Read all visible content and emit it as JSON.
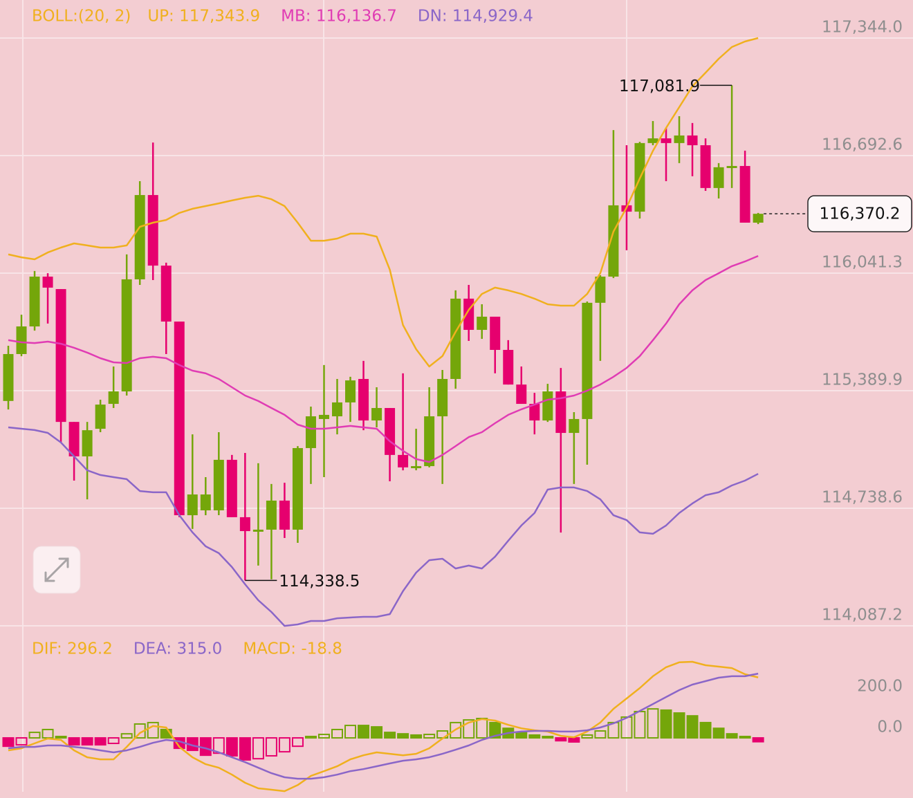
{
  "chart_data": [
    {
      "type": "candlestick",
      "title": "BOLL:(20, 2)",
      "open": [
        115333,
        115593,
        115746,
        116022,
        115953,
        115217,
        115026,
        115179,
        115317,
        115386,
        116007,
        116474,
        116083,
        115773,
        114700,
        114727,
        114727,
        115007,
        114689,
        114612,
        114620,
        114781,
        114620,
        115072,
        115233,
        115248,
        115325,
        115455,
        115225,
        115294,
        115034,
        114965,
        114972,
        115248,
        115455,
        115900,
        115727,
        115800,
        115616,
        115424,
        115317,
        115225,
        115386,
        115156,
        115233,
        115877,
        116022,
        116417,
        116382,
        116762,
        116788,
        116762,
        116804,
        116750,
        116513,
        116624,
        116635,
        116321
      ],
      "high": [
        115639,
        115811,
        116053,
        116041,
        115953,
        115217,
        115217,
        115340,
        115524,
        116145,
        116551,
        116765,
        116099,
        115773,
        115148,
        114911,
        115160,
        115034,
        115045,
        114988,
        114873,
        114880,
        115083,
        115302,
        115532,
        115455,
        115467,
        115555,
        115409,
        115294,
        115486,
        115179,
        115409,
        115505,
        115946,
        115976,
        115869,
        115800,
        115670,
        115524,
        115378,
        115428,
        115516,
        115271,
        115884,
        116030,
        116834,
        116750,
        116769,
        116884,
        116846,
        116911,
        116873,
        116788,
        116651,
        117081.9,
        116720,
        116375
      ],
      "low": [
        115286,
        115581,
        115723,
        115762,
        115103,
        114892,
        114788,
        115160,
        115294,
        115363,
        115976,
        116003,
        115593,
        114689,
        114624,
        114700,
        114700,
        114689,
        114338.5,
        114421,
        114345,
        114574,
        114547,
        114873,
        114911,
        115148,
        115217,
        115171,
        115187,
        114888,
        114949,
        114949,
        114965,
        114873,
        115401,
        115666,
        115677,
        115486,
        115424,
        115317,
        115148,
        115217,
        114604,
        114873,
        114980,
        115555,
        116014,
        116168,
        116344,
        116750,
        116551,
        116651,
        116578,
        116497,
        116455,
        116513,
        116321,
        116313
      ],
      "close": [
        115593,
        115746,
        116022,
        115961,
        115217,
        115026,
        115171,
        115313,
        115386,
        116007,
        116474,
        116083,
        115773,
        114700,
        114815,
        114815,
        115007,
        114689,
        114612,
        114620,
        114781,
        114620,
        115072,
        115248,
        115256,
        115325,
        115447,
        115225,
        115294,
        115034,
        114965,
        114972,
        115248,
        115455,
        115900,
        115727,
        115800,
        115616,
        115424,
        115317,
        115225,
        115386,
        115156,
        115233,
        115877,
        116022,
        116417,
        116382,
        116762,
        116788,
        116762,
        116804,
        116750,
        116513,
        116628,
        116635,
        116321,
        116370.2
      ],
      "up_color": "#74a60a",
      "down_color": "#e6006e",
      "series": [
        {
          "name": "UP: 117,343.9",
          "color": "#f0b01e",
          "values": [
            116145,
            116129,
            116118,
            116156,
            116183,
            116206,
            116195,
            116183,
            116183,
            116195,
            116298,
            116321,
            116336,
            116375,
            116398,
            116413,
            116428,
            116444,
            116459,
            116470,
            116451,
            116413,
            116321,
            116221,
            116221,
            116233,
            116260,
            116260,
            116244,
            116060,
            115754,
            115620,
            115524,
            115582,
            115716,
            115838,
            115926,
            115961,
            115946,
            115926,
            115900,
            115869,
            115861,
            115861,
            115926,
            116041,
            116271,
            116405,
            116566,
            116719,
            116846,
            116961,
            117076,
            117152,
            117229,
            117294,
            117325,
            117343.9
          ]
        },
        {
          "name": "MB: 116,136.7",
          "color": "#e03cb4",
          "values": [
            115670,
            115658,
            115654,
            115662,
            115650,
            115628,
            115601,
            115570,
            115547,
            115543,
            115570,
            115578,
            115570,
            115532,
            115501,
            115486,
            115455,
            115409,
            115363,
            115333,
            115294,
            115256,
            115202,
            115179,
            115179,
            115187,
            115195,
            115187,
            115179,
            115110,
            115057,
            115011,
            114995,
            115034,
            115083,
            115133,
            115160,
            115210,
            115256,
            115287,
            115313,
            115340,
            115348,
            115363,
            115390,
            115424,
            115467,
            115516,
            115582,
            115670,
            115762,
            115869,
            115946,
            116003,
            116041,
            116080,
            116106,
            116136.7
          ]
        },
        {
          "name": "DN: 114,929.4",
          "color": "#8a66c8",
          "values": [
            115187,
            115179,
            115172,
            115156,
            115103,
            115026,
            114949,
            114923,
            114911,
            114900,
            114834,
            114827,
            114827,
            114700,
            114605,
            114528,
            114490,
            114413,
            114317,
            114229,
            114164,
            114087,
            114095,
            114114,
            114114,
            114129,
            114133,
            114137,
            114137,
            114152,
            114279,
            114382,
            114451,
            114459,
            114405,
            114421,
            114405,
            114470,
            114559,
            114643,
            114712,
            114842,
            114854,
            114854,
            114834,
            114788,
            114700,
            114673,
            114605,
            114597,
            114643,
            114712,
            114765,
            114811,
            114827,
            114865,
            114892,
            114929.4
          ]
        }
      ],
      "ylim": [
        114087.2,
        117554.7
      ],
      "yticks": [
        {
          "value": 117344.0,
          "label": "117,344.0"
        },
        {
          "value": 116692.6,
          "label": "116,692.6"
        },
        {
          "value": 116041.3,
          "label": "116,041.3"
        },
        {
          "value": 115389.9,
          "label": "115,389.9"
        },
        {
          "value": 114738.6,
          "label": "114,738.6"
        },
        {
          "value": 114087.2,
          "label": "114,087.2"
        }
      ],
      "grid": true,
      "high_label": "117,081.9",
      "low_label": "114,338.5",
      "last_close_label": "116,370.2"
    },
    {
      "type": "macd",
      "series": [
        {
          "name": "DIF: 296.2",
          "color": "#f0b01e",
          "values": [
            -61,
            -51,
            -27,
            -3,
            -10,
            -61,
            -95,
            -105,
            -105,
            -44,
            24,
            58,
            51,
            -44,
            -95,
            -129,
            -146,
            -180,
            -220,
            -247,
            -254,
            -261,
            -231,
            -186,
            -163,
            -139,
            -105,
            -85,
            -71,
            -78,
            -85,
            -78,
            -51,
            -3,
            41,
            75,
            92,
            85,
            64,
            47,
            37,
            31,
            10,
            3,
            31,
            75,
            142,
            193,
            244,
            302,
            346,
            370,
            373,
            356,
            349,
            342,
            312,
            296.2
          ]
        },
        {
          "name": "DEA: 315.0",
          "color": "#8a66c8",
          "values": [
            -51,
            -44,
            -44,
            -37,
            -37,
            -44,
            -51,
            -61,
            -71,
            -61,
            -44,
            -24,
            -10,
            -17,
            -37,
            -51,
            -71,
            -95,
            -119,
            -146,
            -173,
            -193,
            -200,
            -200,
            -193,
            -180,
            -163,
            -153,
            -139,
            -125,
            -112,
            -105,
            -95,
            -78,
            -58,
            -37,
            -10,
            10,
            24,
            31,
            34,
            34,
            31,
            31,
            37,
            51,
            71,
            98,
            132,
            166,
            200,
            234,
            261,
            278,
            295,
            302,
            302,
            315.0
          ]
        },
        {
          "name": "MACD: -18.8",
          "type": "histogram",
          "color": "#f0b01e",
          "up_color": "#74a60a",
          "down_color": "#e6006e",
          "values": [
            -41,
            -34,
            27,
            41,
            7,
            -34,
            -34,
            -34,
            -27,
            20,
            68,
            75,
            41,
            -51,
            -61,
            -85,
            -75,
            -88,
            -108,
            -102,
            -88,
            -68,
            -41,
            7,
            17,
            41,
            61,
            61,
            54,
            27,
            20,
            14,
            17,
            34,
            75,
            88,
            95,
            75,
            47,
            27,
            14,
            7,
            -14,
            -20,
            14,
            34,
            75,
            102,
            129,
            142,
            136,
            122,
            108,
            75,
            47,
            20,
            7,
            -18.8
          ]
        }
      ],
      "ylim": [
        -264,
        549
      ],
      "yticks": [
        {
          "value": 200,
          "label": "200.0"
        },
        {
          "value": 0,
          "label": "0.0"
        }
      ],
      "grid": false
    }
  ]
}
